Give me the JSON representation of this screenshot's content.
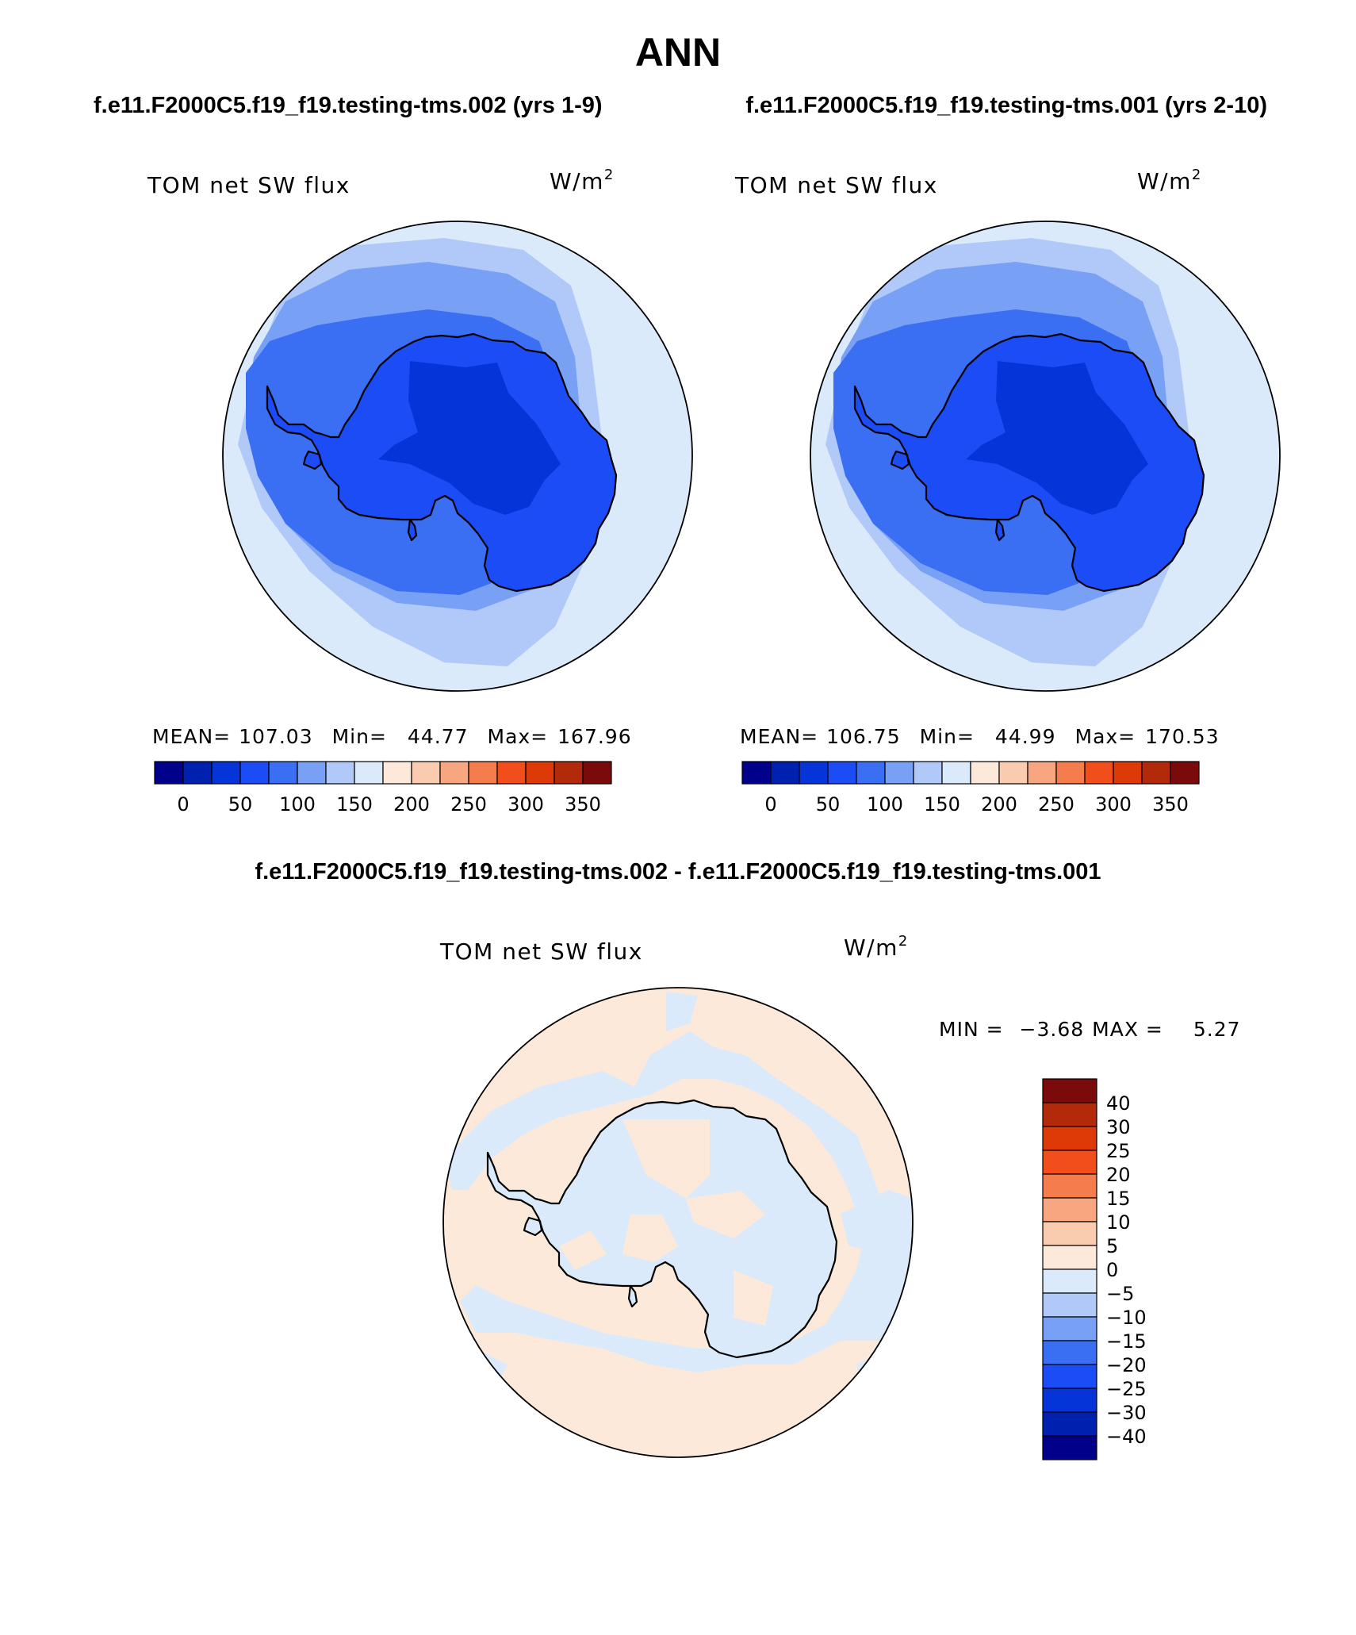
{
  "header": {
    "title": "ANN",
    "left_case": "f.e11.F2000C5.f19_f19.testing-tms.002 (yrs 1-9)",
    "right_case": "f.e11.F2000C5.f19_f19.testing-tms.001 (yrs 2-10)",
    "diff_title": "f.e11.F2000C5.f19_f19.testing-tms.002 - f.e11.F2000C5.f19_f19.testing-tms.001"
  },
  "panels": [
    {
      "variable": "TOM net SW flux",
      "units": "W/m",
      "units_sup": "2",
      "stats": {
        "mean_label": "MEAN=",
        "mean": "107.03",
        "min_label": "Min=",
        "min": "44.77",
        "max_label": "Max=",
        "max": "167.96"
      }
    },
    {
      "variable": "TOM net SW flux",
      "units": "W/m",
      "units_sup": "2",
      "stats": {
        "mean_label": "MEAN=",
        "mean": "106.75",
        "min_label": "Min=",
        "min": "44.99",
        "max_label": "Max=",
        "max": "170.53"
      }
    }
  ],
  "diff_panel": {
    "variable": "TOM net SW flux",
    "units": "W/m",
    "units_sup": "2",
    "min_label": "MIN =",
    "min": "−3.68",
    "max_label": "MAX =",
    "max": "5.27"
  },
  "colorbar_main": {
    "colors": [
      "#00008b",
      "#0020b0",
      "#0535d8",
      "#1c4cf5",
      "#3a6ef3",
      "#78a0f5",
      "#b0c9f8",
      "#daeafb",
      "#fde9da",
      "#fbcbb0",
      "#f8a67f",
      "#f57c4c",
      "#f24e1c",
      "#dd3a08",
      "#b32a0a",
      "#7b0a0a"
    ],
    "tick_labels": [
      "0",
      "50",
      "100",
      "150",
      "200",
      "250",
      "300",
      "350"
    ]
  },
  "colorbar_diff": {
    "colors": [
      "#7b0a0a",
      "#b32a0a",
      "#dd3a08",
      "#f24e1c",
      "#f57c4c",
      "#f8a67f",
      "#fbcbb0",
      "#fde9da",
      "#daeafb",
      "#b0c9f8",
      "#78a0f5",
      "#3a6ef3",
      "#1c4cf5",
      "#0535d8",
      "#0020b0",
      "#00008b"
    ],
    "tick_labels": [
      "40",
      "30",
      "25",
      "20",
      "15",
      "10",
      "5",
      "0",
      "−5",
      "−10",
      "−15",
      "−20",
      "−25",
      "−30",
      "−40"
    ]
  },
  "map_colors": {
    "level_150_200": "#daeafb",
    "level_100_150": "#b0c9f8",
    "level_75_100": "#78a0f5",
    "level_50_75": "#3a6ef3",
    "level_25_50": "#1c4cf5",
    "level_0_25": "#0535d8",
    "diff_pos": "#fde9da",
    "diff_neg": "#daeafb",
    "coast": "#000000"
  }
}
